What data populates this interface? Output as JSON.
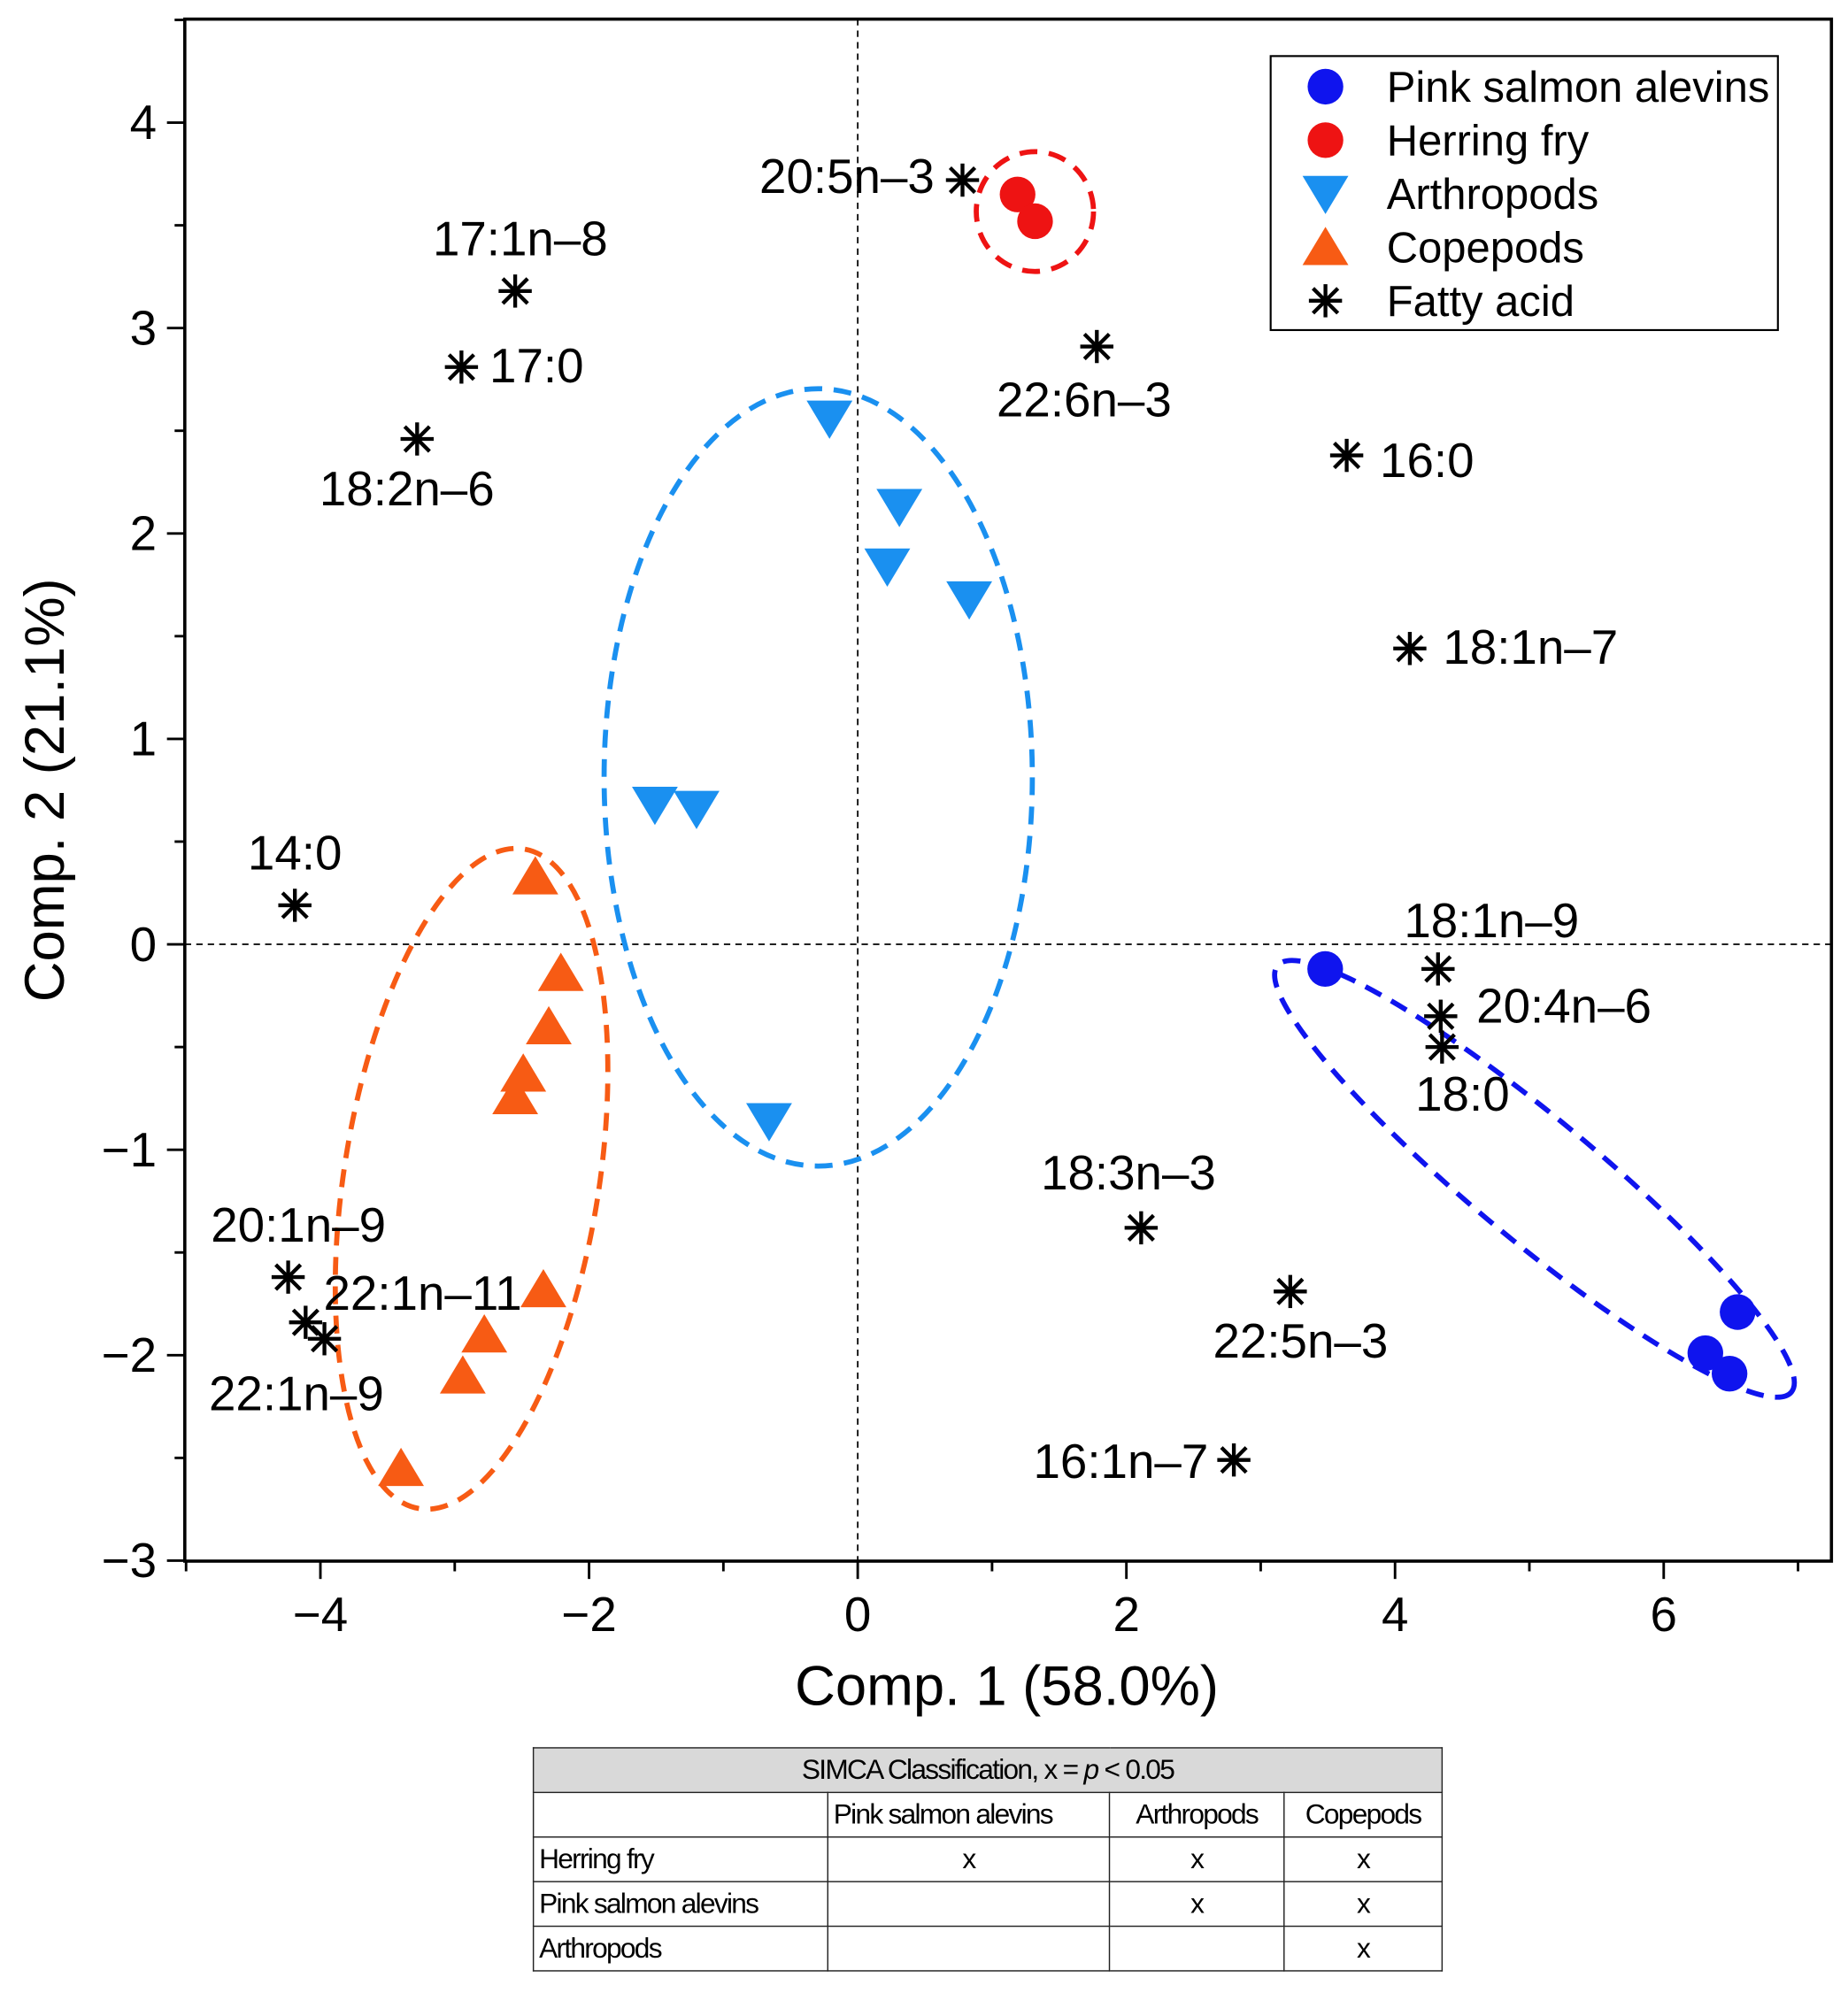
{
  "chart_data": {
    "type": "scatter",
    "title": "",
    "xlabel": "Comp. 1 (58.0%)",
    "ylabel": "Comp. 2 (21.1%)",
    "xlim": [
      -5,
      7
    ],
    "ylim": [
      -3,
      4.5
    ],
    "x_ticks": [
      -4,
      -2,
      0,
      2,
      4,
      6
    ],
    "y_ticks": [
      -3,
      -2,
      -1,
      0,
      1,
      2,
      3,
      4
    ],
    "x_tick_labels": [
      "−4",
      "−2",
      "0",
      "2",
      "4",
      "6"
    ],
    "y_tick_labels": [
      "−3",
      "−2",
      "−1",
      "0",
      "1",
      "2",
      "3",
      "4"
    ],
    "grid": false,
    "reference_lines": {
      "x": 0,
      "y": 0
    },
    "legend_position": "top-right",
    "series": [
      {
        "name": "Pink salmon alevins",
        "marker": "circle",
        "color": "#0f14ee",
        "points": [
          [
            3.48,
            -0.12
          ],
          [
            6.55,
            -1.79
          ],
          [
            6.31,
            -1.99
          ],
          [
            6.49,
            -2.09
          ]
        ]
      },
      {
        "name": "Herring fry",
        "marker": "circle",
        "color": "#ee1313",
        "points": [
          [
            1.19,
            3.65
          ],
          [
            1.32,
            3.52
          ]
        ]
      },
      {
        "name": "Arthropods",
        "marker": "triangle-down",
        "color": "#1a90f0",
        "points": [
          [
            -0.21,
            2.56
          ],
          [
            0.31,
            2.13
          ],
          [
            0.22,
            1.84
          ],
          [
            0.83,
            1.68
          ],
          [
            -1.51,
            0.68
          ],
          [
            -1.2,
            0.66
          ],
          [
            -0.66,
            -0.86
          ]
        ]
      },
      {
        "name": "Copepods",
        "marker": "triangle-up",
        "color": "#f75b14",
        "points": [
          [
            -2.4,
            0.33
          ],
          [
            -2.21,
            -0.14
          ],
          [
            -2.3,
            -0.4
          ],
          [
            -2.49,
            -0.63
          ],
          [
            -2.55,
            -0.74
          ],
          [
            -2.34,
            -1.68
          ],
          [
            -2.78,
            -1.9
          ],
          [
            -2.94,
            -2.1
          ],
          [
            -3.4,
            -2.55
          ]
        ]
      },
      {
        "name": "Fatty acid",
        "marker": "asterisk",
        "color": "#000000",
        "points": [
          {
            "label": "20:5n–3",
            "x": 0.78,
            "y": 3.72
          },
          {
            "label": "17:1n–8",
            "x": -2.55,
            "y": 3.18
          },
          {
            "label": "17:0",
            "x": -2.95,
            "y": 2.81
          },
          {
            "label": "18:2n–6",
            "x": -3.28,
            "y": 2.46
          },
          {
            "label": "22:6n–3",
            "x": 1.78,
            "y": 2.91
          },
          {
            "label": "16:0",
            "x": 3.64,
            "y": 2.38
          },
          {
            "label": "18:1n–7",
            "x": 4.11,
            "y": 1.44
          },
          {
            "label": "14:0",
            "x": -4.19,
            "y": 0.19
          },
          {
            "label": "18:1n–9",
            "x": 4.32,
            "y": -0.12
          },
          {
            "label": "20:4n–6",
            "x": 4.34,
            "y": -0.35
          },
          {
            "label": "18:0",
            "x": 4.35,
            "y": -0.5
          },
          {
            "label": "18:3n–3",
            "x": 2.11,
            "y": -1.38
          },
          {
            "label": "22:5n–3",
            "x": 3.22,
            "y": -1.69
          },
          {
            "label": "16:1n–7",
            "x": 2.8,
            "y": -2.51
          },
          {
            "label": "20:1n–9",
            "x": -4.24,
            "y": -1.62
          },
          {
            "label": "22:1n–11",
            "x": -4.11,
            "y": -1.84
          },
          {
            "label": "22:1n–9",
            "x": -3.97,
            "y": -1.92
          }
        ]
      }
    ]
  },
  "table": {
    "title": "SIMCA Classification, x = p < 0.05",
    "title_prefix": "SIMCA Classification, x = ",
    "title_p": "p",
    "title_suffix": " < 0.05",
    "columns": [
      "",
      "Pink salmon alevins",
      "Arthropods",
      "Copepods"
    ],
    "rows": [
      {
        "label": "Herring fry",
        "cells": [
          "x",
          "x",
          "x"
        ]
      },
      {
        "label": "Pink salmon alevins",
        "cells": [
          "",
          "x",
          "x"
        ]
      },
      {
        "label": "Arthropods",
        "cells": [
          "",
          "",
          "x"
        ]
      }
    ]
  }
}
